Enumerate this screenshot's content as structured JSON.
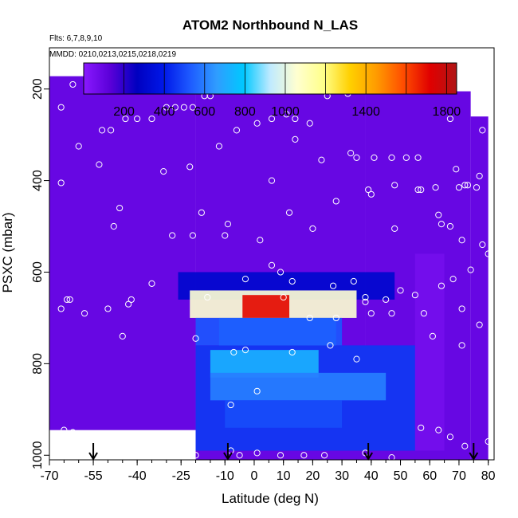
{
  "chart_data": {
    "type": "heatmap",
    "title": "ATOM2 Northbound N_LAS",
    "subtitle_flights": "Flts: 6,7,8,9,10",
    "subtitle_dates": "MMDD: 0210,0213,0215,0218,0219",
    "xlabel": "Latitude (deg N)",
    "ylabel": "PSXC (mbar)",
    "xlim": [
      -70,
      82
    ],
    "ylim": [
      1010,
      110
    ],
    "y_reversed": true,
    "x_ticks": [
      -70,
      -55,
      -40,
      -25,
      -10,
      0,
      10,
      20,
      30,
      40,
      50,
      60,
      70,
      80
    ],
    "x_tick_labels": [
      "-70",
      "-55",
      "-40",
      "-25",
      "-10",
      "0",
      "10",
      "20",
      "30",
      "40",
      "50",
      "60",
      "70",
      "80"
    ],
    "y_ticks": [
      200,
      400,
      600,
      800,
      1000
    ],
    "y_tick_labels": [
      "200",
      "400",
      "600",
      "800",
      "1000"
    ],
    "colorbar": {
      "range": [
        0,
        1850
      ],
      "ticks": [
        200,
        400,
        600,
        800,
        1000,
        1400,
        1800
      ],
      "tick_labels": [
        "200",
        "400",
        "600",
        "800",
        "1000",
        "1400",
        "1800"
      ],
      "stops": [
        "#8a19ff",
        "#5a00d8",
        "#0000c0",
        "#0018e8",
        "#1e5aff",
        "#2f9dff",
        "#00c8ff",
        "#bfeaff",
        "#ffffd0",
        "#ffff8a",
        "#ffd000",
        "#ff9a00",
        "#ff4d00",
        "#e00000",
        "#b01515"
      ]
    },
    "background_value": 95,
    "data_extent": [
      {
        "lat": [
          -70,
          -20
        ],
        "p": [
          172,
          945
        ]
      },
      {
        "lat": [
          -20,
          38
        ],
        "p": [
          180,
          1010
        ]
      },
      {
        "lat": [
          38,
          74
        ],
        "p": [
          205,
          1010
        ]
      },
      {
        "lat": [
          74,
          80
        ],
        "p": [
          260,
          1010
        ]
      }
    ],
    "features": [
      {
        "lat": [
          -26,
          48
        ],
        "p": [
          600,
          660
        ],
        "value": 310
      },
      {
        "lat": [
          -22,
          35
        ],
        "p": [
          640,
          700
        ],
        "value": 1050
      },
      {
        "lat": [
          -4,
          12
        ],
        "p": [
          650,
          700
        ],
        "value": 1700
      },
      {
        "lat": [
          -12,
          28
        ],
        "p": [
          700,
          760
        ],
        "value": 820
      },
      {
        "lat": [
          -20,
          30
        ],
        "p": [
          700,
          760
        ],
        "value": 520
      },
      {
        "lat": [
          -20,
          55
        ],
        "p": [
          760,
          990
        ],
        "value": 460
      },
      {
        "lat": [
          -15,
          22
        ],
        "p": [
          770,
          830
        ],
        "value": 720
      },
      {
        "lat": [
          -15,
          45
        ],
        "p": [
          820,
          880
        ],
        "value": 600
      },
      {
        "lat": [
          -10,
          30
        ],
        "p": [
          880,
          940
        ],
        "value": 500
      },
      {
        "lat": [
          55,
          65
        ],
        "p": [
          560,
          990
        ],
        "value": 60
      }
    ],
    "sample_points": [
      {
        "lat": -62,
        "p": 190
      },
      {
        "lat": -57,
        "p": 200
      },
      {
        "lat": -66,
        "p": 240
      },
      {
        "lat": -60,
        "p": 325
      },
      {
        "lat": -52,
        "p": 290
      },
      {
        "lat": -49,
        "p": 290
      },
      {
        "lat": -44,
        "p": 265
      },
      {
        "lat": -40,
        "p": 265
      },
      {
        "lat": -35,
        "p": 265
      },
      {
        "lat": -30,
        "p": 240
      },
      {
        "lat": -27,
        "p": 240
      },
      {
        "lat": -24,
        "p": 240
      },
      {
        "lat": -21,
        "p": 240
      },
      {
        "lat": -17,
        "p": 215
      },
      {
        "lat": -15,
        "p": 215
      },
      {
        "lat": -12,
        "p": 325
      },
      {
        "lat": -6,
        "p": 290
      },
      {
        "lat": 1,
        "p": 275
      },
      {
        "lat": 6,
        "p": 265
      },
      {
        "lat": 11,
        "p": 255
      },
      {
        "lat": 14,
        "p": 265
      },
      {
        "lat": 19,
        "p": 275
      },
      {
        "lat": 25,
        "p": 215
      },
      {
        "lat": 32,
        "p": 210
      },
      {
        "lat": -53,
        "p": 365
      },
      {
        "lat": -66,
        "p": 405
      },
      {
        "lat": -46,
        "p": 460
      },
      {
        "lat": -48,
        "p": 500
      },
      {
        "lat": -31,
        "p": 380
      },
      {
        "lat": -22,
        "p": 370
      },
      {
        "lat": -18,
        "p": 470
      },
      {
        "lat": -9,
        "p": 495
      },
      {
        "lat": -21,
        "p": 520
      },
      {
        "lat": -28,
        "p": 520
      },
      {
        "lat": -10,
        "p": 520
      },
      {
        "lat": 2,
        "p": 530
      },
      {
        "lat": 6,
        "p": 400
      },
      {
        "lat": 12,
        "p": 470
      },
      {
        "lat": 14,
        "p": 310
      },
      {
        "lat": 20,
        "p": 505
      },
      {
        "lat": 23,
        "p": 355
      },
      {
        "lat": 28,
        "p": 445
      },
      {
        "lat": 33,
        "p": 340
      },
      {
        "lat": 35,
        "p": 350
      },
      {
        "lat": 39,
        "p": 420
      },
      {
        "lat": 40,
        "p": 430
      },
      {
        "lat": 41,
        "p": 350
      },
      {
        "lat": 47,
        "p": 350
      },
      {
        "lat": 52,
        "p": 350
      },
      {
        "lat": 56,
        "p": 350
      },
      {
        "lat": 48,
        "p": 410
      },
      {
        "lat": 56,
        "p": 420
      },
      {
        "lat": 67,
        "p": 265
      },
      {
        "lat": 78,
        "p": 290
      },
      {
        "lat": 69,
        "p": 375
      },
      {
        "lat": 72,
        "p": 410
      },
      {
        "lat": 70,
        "p": 415
      },
      {
        "lat": 73,
        "p": 410
      },
      {
        "lat": 77,
        "p": 390
      },
      {
        "lat": 76,
        "p": 415
      },
      {
        "lat": 62,
        "p": 415
      },
      {
        "lat": 57,
        "p": 420
      },
      {
        "lat": 64,
        "p": 495
      },
      {
        "lat": 67,
        "p": 500
      },
      {
        "lat": 63,
        "p": 475
      },
      {
        "lat": 48,
        "p": 505
      },
      {
        "lat": 71,
        "p": 530
      },
      {
        "lat": 78,
        "p": 540
      },
      {
        "lat": 80,
        "p": 560
      },
      {
        "lat": 74,
        "p": 595
      },
      {
        "lat": 68,
        "p": 615
      },
      {
        "lat": 64,
        "p": 630
      },
      {
        "lat": 71,
        "p": 680
      },
      {
        "lat": 55,
        "p": 650
      },
      {
        "lat": 50,
        "p": 640
      },
      {
        "lat": 45,
        "p": 660
      },
      {
        "lat": -66,
        "p": 680
      },
      {
        "lat": -64,
        "p": 660
      },
      {
        "lat": -63,
        "p": 660
      },
      {
        "lat": -58,
        "p": 690
      },
      {
        "lat": -50,
        "p": 680
      },
      {
        "lat": -43,
        "p": 670
      },
      {
        "lat": -42,
        "p": 660
      },
      {
        "lat": -45,
        "p": 740
      },
      {
        "lat": -35,
        "p": 625
      },
      {
        "lat": -20,
        "p": 745
      },
      {
        "lat": -16,
        "p": 655
      },
      {
        "lat": -3,
        "p": 615
      },
      {
        "lat": 6,
        "p": 585
      },
      {
        "lat": 9,
        "p": 600
      },
      {
        "lat": 13,
        "p": 620
      },
      {
        "lat": 10,
        "p": 655
      },
      {
        "lat": 27,
        "p": 630
      },
      {
        "lat": 34,
        "p": 620
      },
      {
        "lat": 38,
        "p": 655
      },
      {
        "lat": 38,
        "p": 665
      },
      {
        "lat": 19,
        "p": 700
      },
      {
        "lat": 28,
        "p": 700
      },
      {
        "lat": 40,
        "p": 690
      },
      {
        "lat": 47,
        "p": 690
      },
      {
        "lat": 58,
        "p": 690
      },
      {
        "lat": 61,
        "p": 740
      },
      {
        "lat": 71,
        "p": 760
      },
      {
        "lat": 77,
        "p": 715
      },
      {
        "lat": 63,
        "p": 945
      },
      {
        "lat": 57,
        "p": 940
      },
      {
        "lat": 67,
        "p": 960
      },
      {
        "lat": 72,
        "p": 980
      },
      {
        "lat": -65,
        "p": 945
      },
      {
        "lat": -62,
        "p": 950
      },
      {
        "lat": -20,
        "p": 1000
      },
      {
        "lat": -8,
        "p": 990
      },
      {
        "lat": -5,
        "p": 1000
      },
      {
        "lat": 1,
        "p": 995
      },
      {
        "lat": 9,
        "p": 1000
      },
      {
        "lat": 17,
        "p": 1000
      },
      {
        "lat": 24,
        "p": 1000
      },
      {
        "lat": 38,
        "p": 995
      },
      {
        "lat": 47,
        "p": 1005
      },
      {
        "lat": 80,
        "p": 970
      },
      {
        "lat": -3,
        "p": 770
      },
      {
        "lat": -7,
        "p": 775
      },
      {
        "lat": 13,
        "p": 775
      },
      {
        "lat": 26,
        "p": 760
      },
      {
        "lat": 35,
        "p": 790
      },
      {
        "lat": -8,
        "p": 890
      },
      {
        "lat": 1,
        "p": 860
      }
    ],
    "arrows_lat": [
      -55,
      -9,
      39,
      75
    ]
  }
}
